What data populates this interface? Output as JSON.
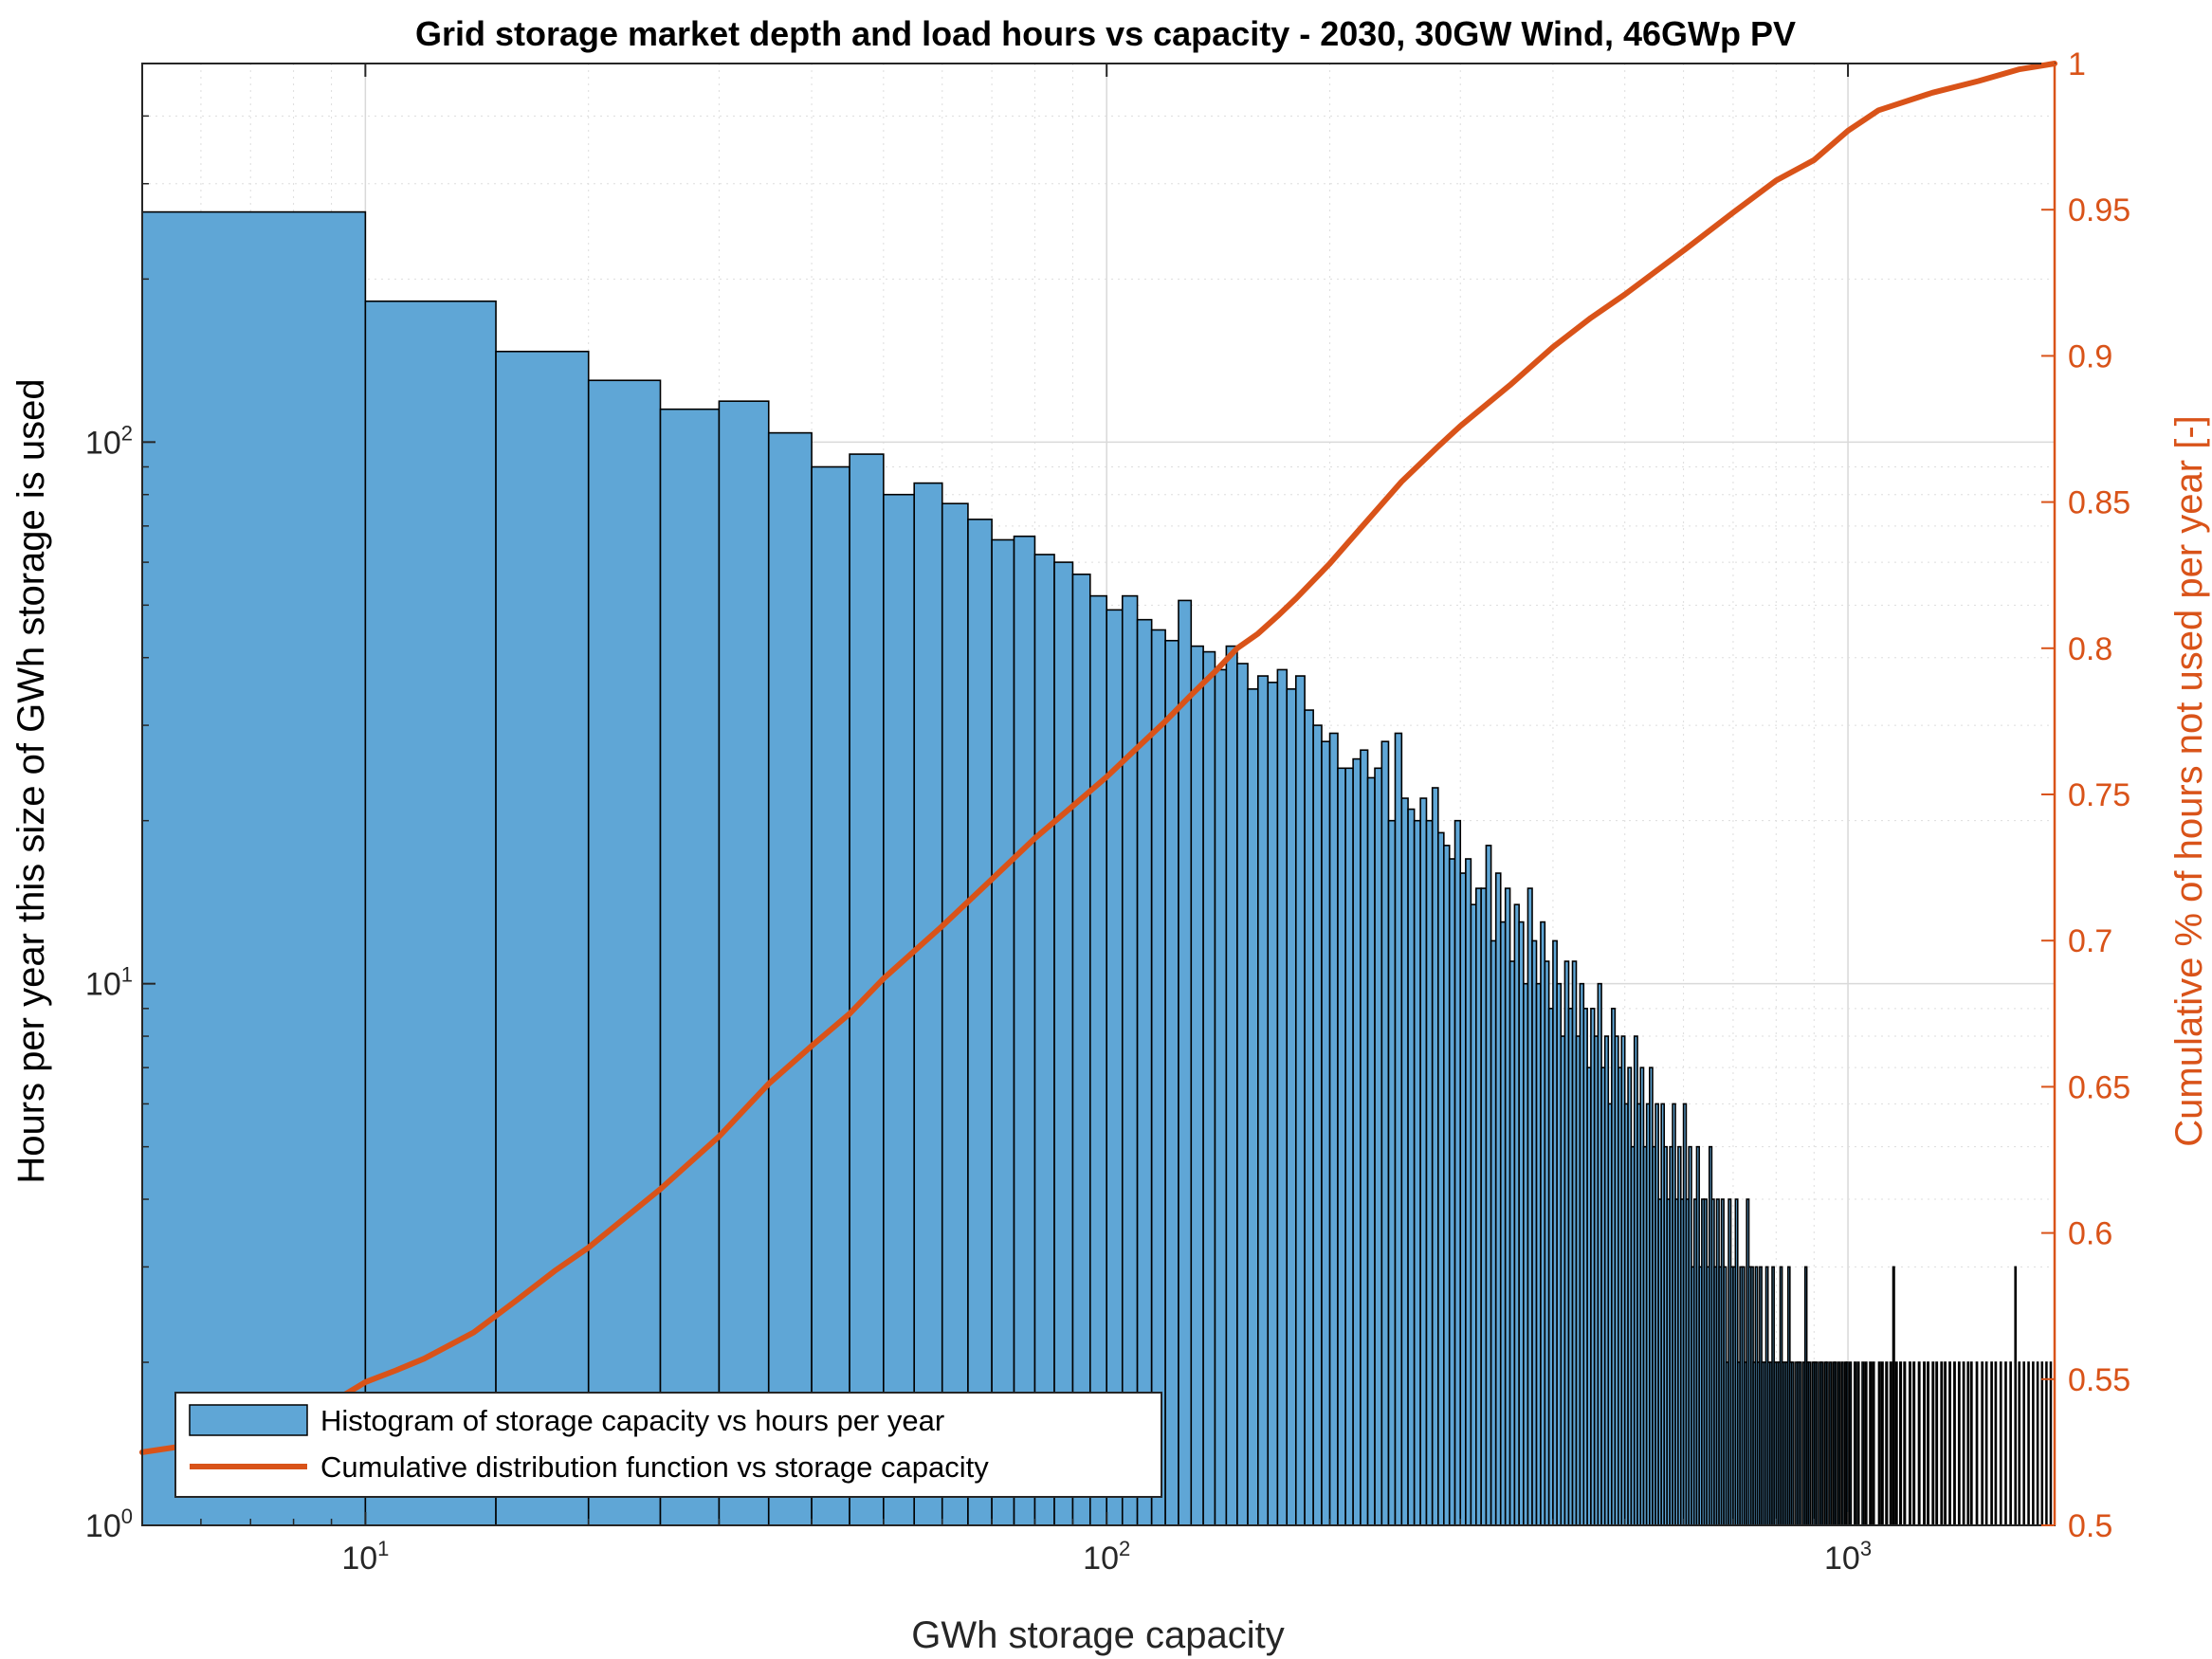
{
  "chart_data": {
    "type": "bar",
    "title": "Grid storage market depth and load hours vs capacity - 2030, 30GW Wind, 46GWp PV",
    "xlabel": "GWh storage capacity",
    "ylabel": "Hours per year this size of GWh storage is used",
    "ylabel_right": "Cumulative % of hours not used per year [-]",
    "x_scale": "log",
    "y_scale": "log",
    "xlim": [
      5,
      1900
    ],
    "ylim": [
      1,
      500
    ],
    "ylim_right": [
      0.5,
      1
    ],
    "grid": true,
    "x_ticks": [
      {
        "value": 10,
        "base": "10",
        "exp": "1"
      },
      {
        "value": 100,
        "base": "10",
        "exp": "2"
      },
      {
        "value": 1000,
        "base": "10",
        "exp": "3"
      }
    ],
    "y_ticks": [
      {
        "value": 1,
        "base": "10",
        "exp": "0"
      },
      {
        "value": 10,
        "base": "10",
        "exp": "1"
      },
      {
        "value": 100,
        "base": "10",
        "exp": "2"
      }
    ],
    "y_ticks_right": [
      "0.5",
      "0.55",
      "0.6",
      "0.65",
      "0.7",
      "0.75",
      "0.8",
      "0.85",
      "0.9",
      "0.95",
      "1"
    ],
    "legend_position": "bottom-left",
    "legend": [
      {
        "label": "Histogram of storage capacity vs hours per year",
        "type": "bar"
      },
      {
        "label": "Cumulative distribution function vs storage capacity",
        "type": "line"
      }
    ],
    "colors": {
      "bar_fill": "#5FA6D6",
      "bar_edge": "#000000",
      "cdf_line": "#D95319",
      "right_axis": "#D95319"
    },
    "series": [
      {
        "name": "Histogram of storage capacity vs hours per year",
        "type": "bar",
        "bin_width": 5,
        "bin_start": 5,
        "values": [
          266,
          182,
          147,
          130,
          115,
          119,
          104,
          90,
          95,
          80,
          84,
          77,
          72,
          66,
          67,
          62,
          60,
          57,
          52,
          49,
          52,
          47,
          45,
          43,
          51,
          42,
          41,
          38,
          42,
          39,
          35,
          37,
          36,
          38,
          35,
          37,
          32,
          30,
          28,
          29,
          25,
          25,
          26,
          27,
          24,
          25,
          28,
          20,
          29,
          22,
          21,
          20,
          22,
          20,
          23,
          19,
          18,
          17,
          20,
          16,
          17,
          14,
          15,
          15,
          18,
          12,
          16,
          13,
          15,
          11,
          14,
          13,
          10,
          15,
          12,
          10,
          13,
          11,
          9,
          12,
          10,
          8,
          11,
          9,
          11,
          8,
          10,
          9,
          7,
          9,
          8,
          10,
          7,
          8,
          6,
          9,
          8,
          7,
          8,
          6,
          7,
          5,
          8,
          6,
          7,
          5,
          6,
          7,
          5,
          6,
          4,
          6,
          5,
          4,
          5,
          6,
          4,
          5,
          4,
          6,
          4,
          5,
          3,
          4,
          5,
          3,
          4,
          4,
          3,
          5,
          4,
          3,
          4,
          3,
          4,
          3,
          2,
          4,
          3,
          3,
          4,
          2,
          3,
          3,
          2,
          4,
          3,
          3,
          2,
          3,
          2,
          3,
          2,
          2,
          3,
          2,
          2,
          3,
          2,
          2,
          2,
          3,
          2,
          2,
          2,
          3,
          2,
          2,
          1,
          2,
          2,
          2,
          1,
          2,
          3,
          2,
          2,
          1,
          2,
          2,
          2,
          1,
          2,
          2,
          1,
          2,
          2,
          1,
          2,
          1,
          2,
          2,
          1,
          2,
          1,
          2,
          1,
          2,
          2,
          1,
          2,
          1,
          1,
          2,
          1,
          2,
          1,
          1,
          2,
          1,
          2,
          1,
          1,
          2,
          1,
          2,
          1,
          1,
          1,
          2,
          1,
          2,
          1,
          1,
          2,
          1,
          1,
          2,
          1,
          3,
          1,
          2,
          1,
          1,
          2,
          1,
          1,
          2,
          1,
          1,
          1,
          2,
          1,
          1,
          2,
          1,
          1,
          1,
          2,
          1,
          1,
          1,
          2,
          1,
          1,
          2,
          1,
          1,
          1,
          2,
          1,
          1,
          2,
          1,
          1,
          1,
          2,
          1,
          1,
          2,
          1,
          1,
          1,
          2,
          1,
          1,
          1,
          2,
          1,
          1,
          1,
          2,
          1,
          1,
          1,
          2,
          1,
          1,
          1,
          2,
          1,
          1,
          2,
          1,
          1,
          1,
          1,
          2,
          1,
          1,
          1,
          1,
          2,
          1,
          1,
          1,
          2,
          1,
          1,
          1,
          1,
          2,
          1,
          1,
          1,
          2,
          1,
          1,
          1,
          1,
          2,
          1,
          1,
          1,
          1,
          2,
          1,
          1,
          1,
          1,
          2,
          1,
          1,
          1,
          1,
          3,
          1,
          1,
          1,
          2,
          1,
          1,
          1,
          1,
          2,
          1,
          1,
          1,
          1,
          2,
          1,
          1,
          1,
          1,
          2,
          1,
          1,
          1,
          1,
          2,
          1,
          1,
          1,
          1,
          2,
          1,
          1,
          1,
          1,
          2,
          1,
          1,
          1,
          1,
          2,
          1,
          1,
          1,
          1,
          2,
          1,
          3
        ]
      },
      {
        "name": "Cumulative distribution function vs storage capacity",
        "type": "line",
        "axis": "right",
        "x": [
          5,
          6,
          7,
          8,
          9,
          10,
          11,
          12,
          14,
          16,
          18,
          20,
          25,
          30,
          35,
          40,
          45,
          50,
          60,
          70,
          80,
          90,
          100,
          110,
          120,
          130,
          140,
          150,
          160,
          170,
          180,
          200,
          220,
          250,
          280,
          300,
          350,
          400,
          450,
          500,
          600,
          700,
          800,
          900,
          1000,
          1100,
          1300,
          1500,
          1700,
          1900
        ],
        "values": [
          0.525,
          0.528,
          0.531,
          0.536,
          0.542,
          0.549,
          0.553,
          0.557,
          0.566,
          0.577,
          0.587,
          0.595,
          0.615,
          0.633,
          0.651,
          0.664,
          0.675,
          0.687,
          0.705,
          0.721,
          0.735,
          0.746,
          0.756,
          0.766,
          0.775,
          0.784,
          0.792,
          0.8,
          0.805,
          0.811,
          0.817,
          0.829,
          0.841,
          0.857,
          0.869,
          0.876,
          0.89,
          0.903,
          0.913,
          0.921,
          0.936,
          0.949,
          0.96,
          0.967,
          0.977,
          0.984,
          0.99,
          0.994,
          0.998,
          1.0
        ]
      }
    ]
  }
}
